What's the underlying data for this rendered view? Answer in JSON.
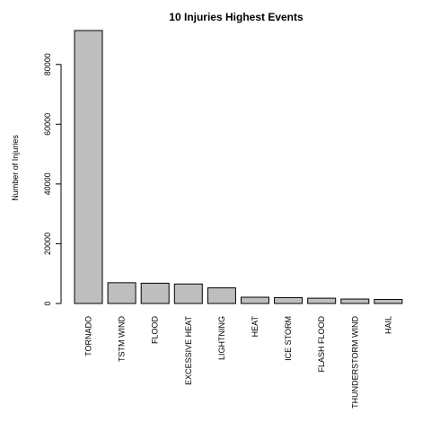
{
  "chart_data": {
    "type": "bar",
    "title": "10 Injuries Highest Events",
    "xlabel": "",
    "ylabel": "Number of Injuries",
    "categories": [
      "TORNADO",
      "TSTM WIND",
      "FLOOD",
      "EXCESSIVE HEAT",
      "LIGHTNING",
      "HEAT",
      "ICE STORM",
      "FLASH FLOOD",
      "THUNDERSTORM WIND",
      "HAIL"
    ],
    "values": [
      91346,
      6957,
      6789,
      6525,
      5230,
      2100,
      1975,
      1777,
      1488,
      1361
    ],
    "yticks": [
      0,
      20000,
      40000,
      60000,
      80000
    ],
    "ylim": [
      0,
      91346
    ],
    "grid": false,
    "legend": "none",
    "bar_color": "#bebebe",
    "edge_color": "#000000"
  }
}
